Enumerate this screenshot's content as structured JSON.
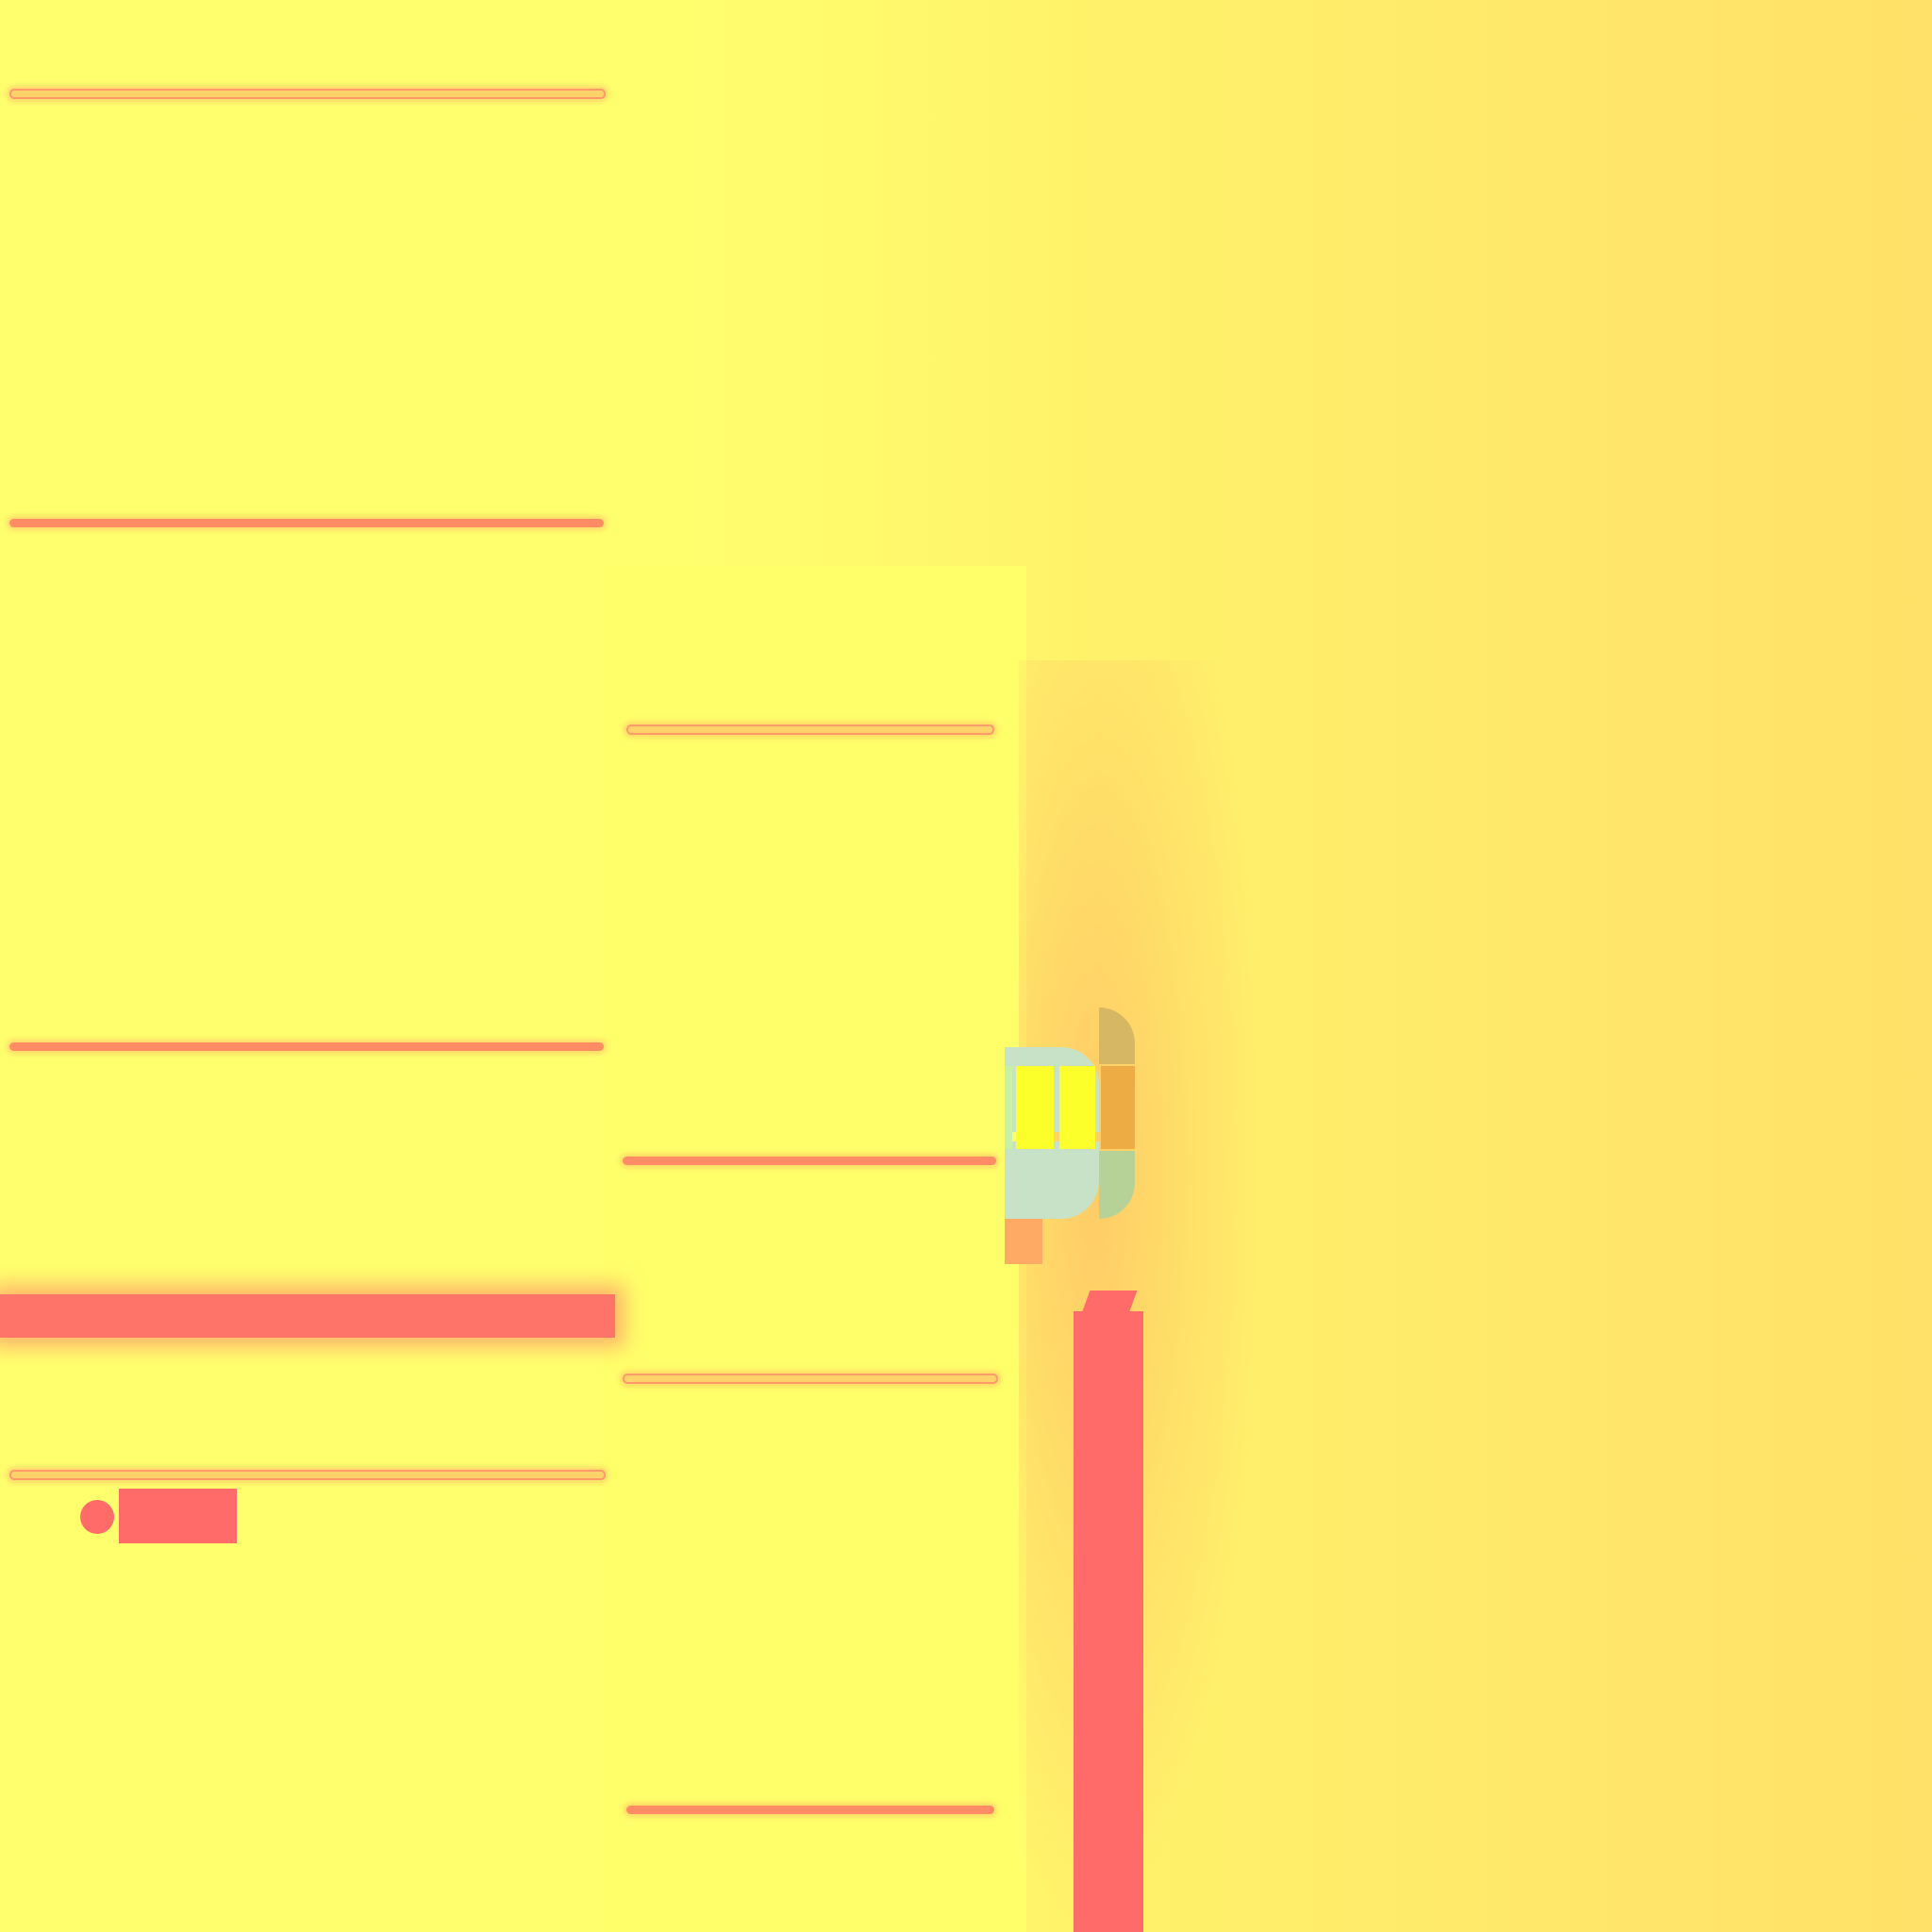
{
  "canvas": {
    "background_colors": [
      "#ffff6e",
      "#fff36a",
      "#ffe068"
    ]
  },
  "left_panel": {
    "separators": 6,
    "highlight_band_color": "#ff7468",
    "radio": {
      "label": "",
      "color": "#ff6b68"
    }
  },
  "middle_panel": {
    "separators": 5
  },
  "widget": {
    "icon": "gauge-icon",
    "cell_colors": [
      "#fcff2a",
      "#fcff2a",
      "#eeac44"
    ]
  },
  "vertical_bar": {
    "color": "#ff6b68"
  }
}
